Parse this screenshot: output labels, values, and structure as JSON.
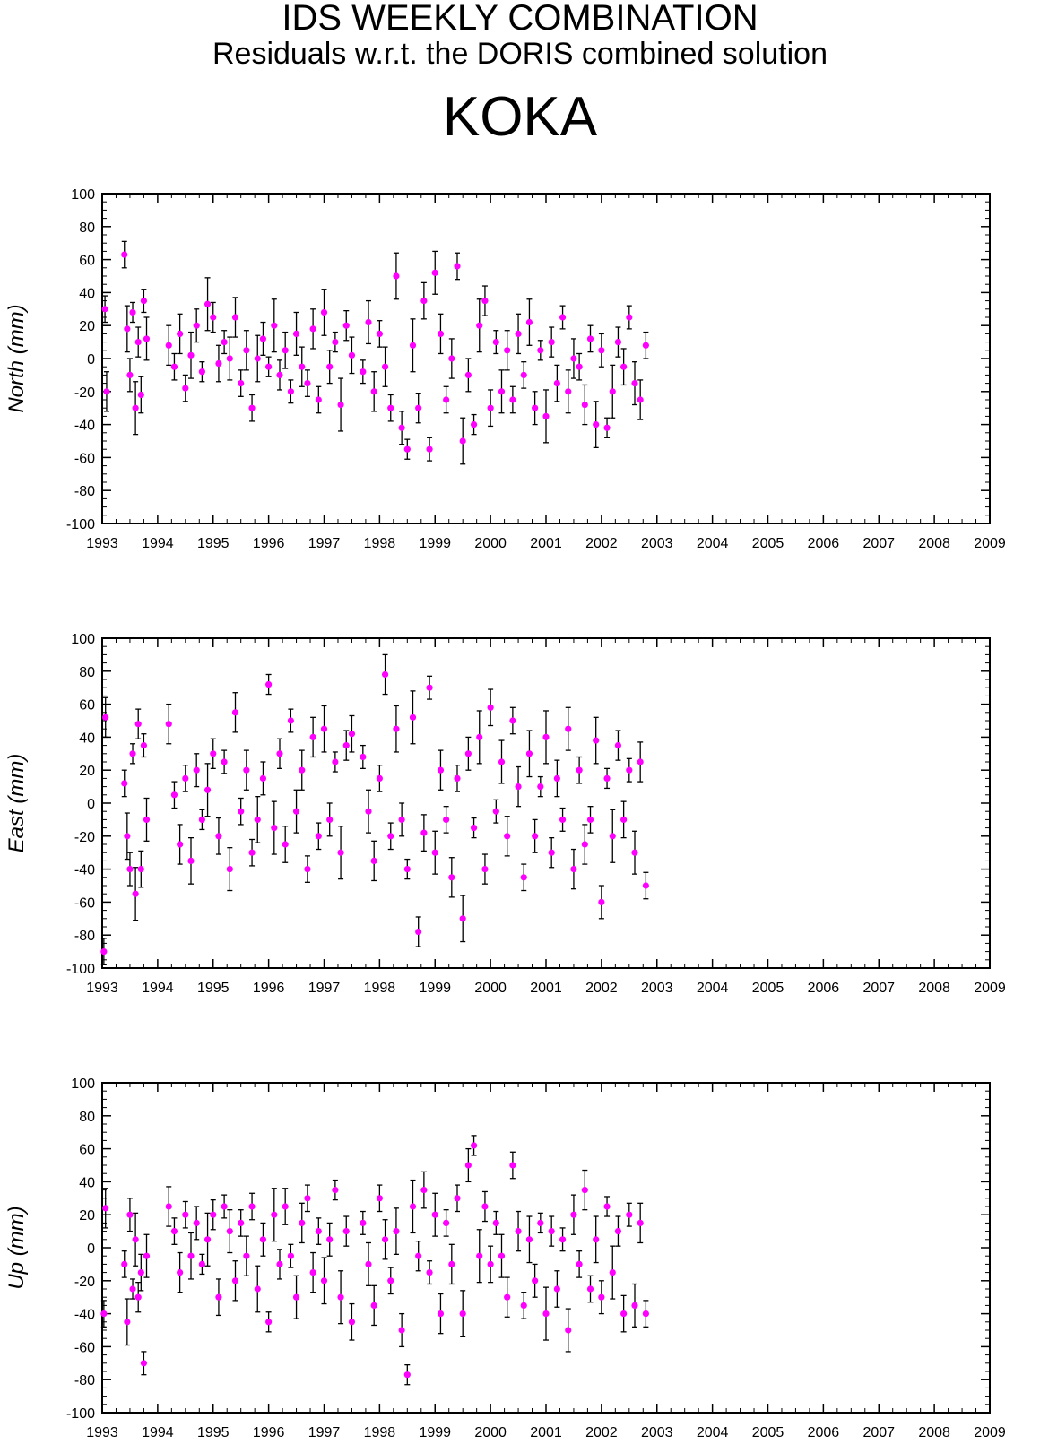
{
  "header": {
    "title": "IDS WEEKLY COMBINATION",
    "subtitle": "Residuals w.r.t. the DORIS combined solution",
    "station": "KOKA"
  },
  "colors": {
    "points": "#ff00ff",
    "error_bars": "#000000",
    "axes": "#000000"
  },
  "chart_data": [
    {
      "type": "scatter",
      "ylabel": "North (mm)",
      "xlim": [
        1993,
        2009
      ],
      "ylim": [
        -100,
        100
      ],
      "x_ticks": [
        "1993",
        "1994",
        "1995",
        "1996",
        "1997",
        "1998",
        "1999",
        "2000",
        "2001",
        "2002",
        "2003",
        "2004",
        "2005",
        "2006",
        "2007",
        "2008",
        "2009"
      ],
      "y_ticks": [
        "100",
        "80",
        "60",
        "40",
        "20",
        "0",
        "-20",
        "-40",
        "-60",
        "-80",
        "-100"
      ],
      "grid": false,
      "series": [
        {
          "x": [
            1993.05,
            1993.08,
            1993.4,
            1993.45,
            1993.5,
            1993.55,
            1993.6,
            1993.65,
            1993.7,
            1993.75,
            1993.8,
            1994.2,
            1994.3,
            1994.4,
            1994.5,
            1994.6,
            1994.7,
            1994.8,
            1994.9,
            1995.0,
            1995.1,
            1995.2,
            1995.3,
            1995.4,
            1995.5,
            1995.6,
            1995.7,
            1995.8,
            1995.9,
            1996.0,
            1996.1,
            1996.2,
            1996.3,
            1996.4,
            1996.5,
            1996.6,
            1996.7,
            1996.8,
            1996.9,
            1997.0,
            1997.1,
            1997.2,
            1997.3,
            1997.4,
            1997.5,
            1997.7,
            1997.8,
            1997.9,
            1998.0,
            1998.1,
            1998.2,
            1998.3,
            1998.4,
            1998.5,
            1998.6,
            1998.7,
            1998.8,
            1998.9,
            1999.0,
            1999.1,
            1999.2,
            1999.3,
            1999.4,
            1999.5,
            1999.6,
            1999.7,
            1999.8,
            1999.9,
            2000.0,
            2000.1,
            2000.2,
            2000.3,
            2000.4,
            2000.5,
            2000.6,
            2000.7,
            2000.8,
            2000.9,
            2001.0,
            2001.1,
            2001.2,
            2001.3,
            2001.4,
            2001.5,
            2001.6,
            2001.7,
            2001.8,
            2001.9,
            2002.0,
            2002.1,
            2002.2,
            2002.3,
            2002.4,
            2002.5,
            2002.6,
            2002.7,
            2002.8
          ],
          "y": [
            30,
            -20,
            63,
            18,
            -10,
            28,
            -30,
            10,
            -22,
            35,
            12,
            8,
            -5,
            15,
            -18,
            2,
            20,
            -8,
            33,
            25,
            -3,
            10,
            0,
            25,
            -15,
            5,
            -30,
            0,
            12,
            -5,
            20,
            -10,
            5,
            -20,
            15,
            -5,
            -15,
            18,
            -25,
            28,
            -5,
            10,
            -28,
            20,
            2,
            -8,
            22,
            -20,
            15,
            -5,
            -30,
            50,
            -42,
            -55,
            8,
            -30,
            35,
            -55,
            52,
            15,
            -25,
            0,
            56,
            -50,
            -10,
            -40,
            20,
            35,
            -30,
            10,
            -20,
            5,
            -25,
            15,
            -10,
            22,
            -30,
            5,
            -35,
            10,
            -15,
            25,
            -20,
            0,
            -5,
            -28,
            12,
            -40,
            5,
            -42,
            -20,
            10,
            -5,
            25,
            -15,
            -25,
            8
          ]
        }
      ]
    },
    {
      "type": "scatter",
      "ylabel": "East (mm)",
      "xlim": [
        1993,
        2009
      ],
      "ylim": [
        -100,
        100
      ],
      "x_ticks": [
        "1993",
        "1994",
        "1995",
        "1996",
        "1997",
        "1998",
        "1999",
        "2000",
        "2001",
        "2002",
        "2003",
        "2004",
        "2005",
        "2006",
        "2007",
        "2008",
        "2009"
      ],
      "y_ticks": [
        "100",
        "80",
        "60",
        "40",
        "20",
        "0",
        "-20",
        "-40",
        "-60",
        "-80",
        "-100"
      ],
      "grid": false,
      "series": [
        {
          "x": [
            1993.03,
            1993.06,
            1993.4,
            1993.45,
            1993.5,
            1993.55,
            1993.6,
            1993.65,
            1993.7,
            1993.75,
            1993.8,
            1994.2,
            1994.3,
            1994.4,
            1994.5,
            1994.6,
            1994.7,
            1994.8,
            1994.9,
            1995.0,
            1995.1,
            1995.2,
            1995.3,
            1995.4,
            1995.5,
            1995.6,
            1995.7,
            1995.8,
            1995.9,
            1996.0,
            1996.1,
            1996.2,
            1996.3,
            1996.4,
            1996.5,
            1996.6,
            1996.7,
            1996.8,
            1996.9,
            1997.0,
            1997.1,
            1997.2,
            1997.3,
            1997.4,
            1997.5,
            1997.7,
            1997.8,
            1997.9,
            1998.0,
            1998.1,
            1998.2,
            1998.3,
            1998.4,
            1998.5,
            1998.6,
            1998.7,
            1998.8,
            1998.9,
            1999.0,
            1999.1,
            1999.2,
            1999.3,
            1999.4,
            1999.5,
            1999.6,
            1999.7,
            1999.8,
            1999.9,
            2000.0,
            2000.1,
            2000.2,
            2000.3,
            2000.4,
            2000.5,
            2000.6,
            2000.7,
            2000.8,
            2000.9,
            2001.0,
            2001.1,
            2001.2,
            2001.3,
            2001.4,
            2001.5,
            2001.6,
            2001.7,
            2001.8,
            2001.9,
            2002.0,
            2002.1,
            2002.2,
            2002.3,
            2002.4,
            2002.5,
            2002.6,
            2002.7,
            2002.8
          ],
          "y": [
            -90,
            52,
            12,
            -20,
            -40,
            30,
            -55,
            48,
            -40,
            35,
            -10,
            48,
            5,
            -25,
            15,
            -35,
            20,
            -10,
            8,
            30,
            -20,
            25,
            -40,
            55,
            -5,
            20,
            -30,
            -10,
            15,
            72,
            -15,
            30,
            -25,
            50,
            -5,
            20,
            -40,
            40,
            -20,
            45,
            -10,
            25,
            -30,
            35,
            42,
            28,
            -5,
            -35,
            15,
            78,
            -20,
            45,
            -10,
            -40,
            52,
            -78,
            -18,
            70,
            -30,
            20,
            -10,
            -45,
            15,
            -70,
            30,
            -15,
            40,
            -40,
            58,
            -5,
            25,
            -20,
            50,
            10,
            -45,
            30,
            -20,
            10,
            40,
            -30,
            15,
            -10,
            45,
            -40,
            20,
            -25,
            -10,
            38,
            -60,
            15,
            -20,
            35,
            -10,
            20,
            -30,
            25,
            -50
          ]
        }
      ]
    },
    {
      "type": "scatter",
      "ylabel": "Up (mm)",
      "xlim": [
        1993,
        2009
      ],
      "ylim": [
        -100,
        100
      ],
      "x_ticks": [
        "1993",
        "1994",
        "1995",
        "1996",
        "1997",
        "1998",
        "1999",
        "2000",
        "2001",
        "2002",
        "2003",
        "2004",
        "2005",
        "2006",
        "2007",
        "2008",
        "2009"
      ],
      "y_ticks": [
        "100",
        "80",
        "60",
        "40",
        "20",
        "0",
        "-20",
        "-40",
        "-60",
        "-80",
        "-100"
      ],
      "grid": false,
      "series": [
        {
          "x": [
            1993.03,
            1993.06,
            1993.4,
            1993.45,
            1993.5,
            1993.55,
            1993.6,
            1993.65,
            1993.7,
            1993.75,
            1993.8,
            1994.2,
            1994.3,
            1994.4,
            1994.5,
            1994.6,
            1994.7,
            1994.8,
            1994.9,
            1995.0,
            1995.1,
            1995.2,
            1995.3,
            1995.4,
            1995.5,
            1995.6,
            1995.7,
            1995.8,
            1995.9,
            1996.0,
            1996.1,
            1996.2,
            1996.3,
            1996.4,
            1996.5,
            1996.6,
            1996.7,
            1996.8,
            1996.9,
            1997.0,
            1997.1,
            1997.2,
            1997.3,
            1997.4,
            1997.5,
            1997.7,
            1997.8,
            1997.9,
            1998.0,
            1998.1,
            1998.2,
            1998.3,
            1998.4,
            1998.5,
            1998.6,
            1998.7,
            1998.8,
            1998.9,
            1999.0,
            1999.1,
            1999.2,
            1999.3,
            1999.4,
            1999.5,
            1999.6,
            1999.7,
            1999.8,
            1999.9,
            2000.0,
            2000.1,
            2000.2,
            2000.3,
            2000.4,
            2000.5,
            2000.6,
            2000.7,
            2000.8,
            2000.9,
            2001.0,
            2001.1,
            2001.2,
            2001.3,
            2001.4,
            2001.5,
            2001.6,
            2001.7,
            2001.8,
            2001.9,
            2002.0,
            2002.1,
            2002.2,
            2002.3,
            2002.4,
            2002.5,
            2002.6,
            2002.7,
            2002.8
          ],
          "y": [
            -40,
            24,
            -10,
            -45,
            20,
            -25,
            5,
            -30,
            -15,
            -70,
            -5,
            25,
            10,
            -15,
            20,
            -5,
            15,
            -10,
            5,
            20,
            -30,
            25,
            10,
            -20,
            15,
            -5,
            25,
            -25,
            5,
            -45,
            20,
            -10,
            25,
            -5,
            -30,
            15,
            30,
            -15,
            10,
            -20,
            5,
            35,
            -30,
            10,
            -45,
            15,
            -10,
            -35,
            30,
            5,
            -20,
            10,
            -50,
            -77,
            25,
            -5,
            35,
            -15,
            20,
            -40,
            15,
            -10,
            30,
            -40,
            50,
            62,
            -5,
            25,
            -10,
            15,
            -5,
            -30,
            50,
            10,
            -35,
            5,
            -20,
            15,
            -40,
            10,
            -25,
            5,
            -50,
            20,
            -10,
            35,
            -25,
            5,
            -30,
            25,
            -15,
            10,
            -40,
            20,
            -35,
            15,
            -40
          ]
        }
      ]
    }
  ]
}
